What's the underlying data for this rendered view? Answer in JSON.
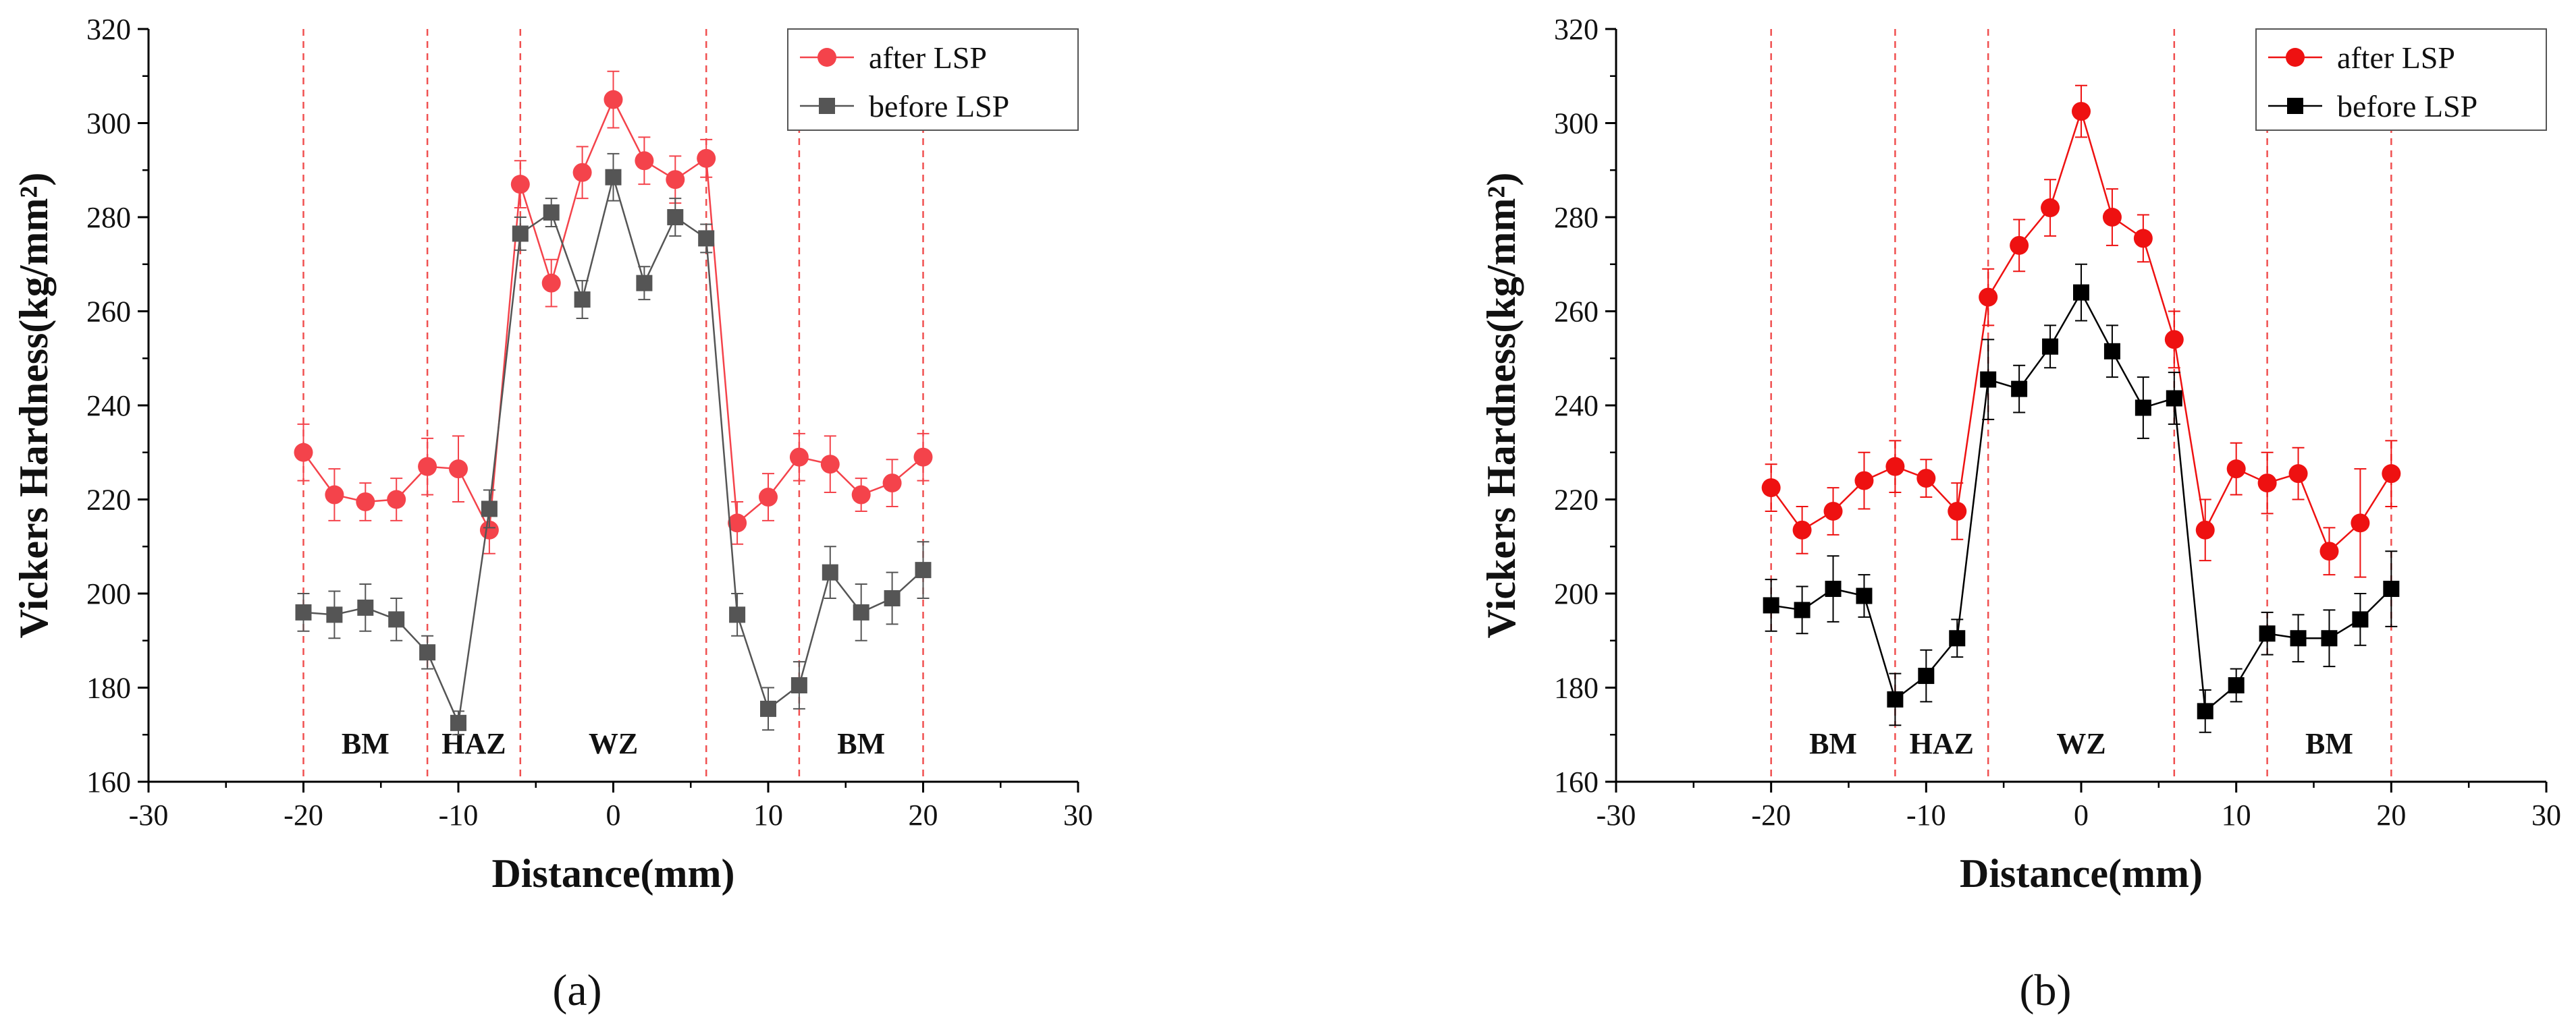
{
  "chart_data": [
    {
      "type": "line",
      "panel_label": "(a)",
      "xlabel": "Distance(mm)",
      "ylabel": "Vickers Hardness(kg/mm²)",
      "xlim": [
        -30,
        30
      ],
      "ylim": [
        160,
        320
      ],
      "xticks": [
        -30,
        -20,
        -10,
        0,
        10,
        20,
        30
      ],
      "yticks": [
        160,
        180,
        200,
        220,
        240,
        260,
        280,
        300,
        320
      ],
      "x": [
        -20,
        -18,
        -16,
        -14,
        -12,
        -10,
        -8,
        -6,
        -4,
        -2,
        0,
        2,
        4,
        6,
        8,
        10,
        12,
        14,
        16,
        18,
        20
      ],
      "zone_lines": [
        -20,
        -12,
        -6,
        6,
        12,
        20
      ],
      "zone_labels": [
        {
          "text": "BM",
          "x": -16
        },
        {
          "text": "HAZ",
          "x": -9
        },
        {
          "text": "WZ",
          "x": 0
        },
        {
          "text": "BM",
          "x": 16
        }
      ],
      "legend": {
        "position": "top-right"
      },
      "series": [
        {
          "name": "after LSP",
          "color": "#f4434b",
          "marker": "circle",
          "values": [
            230,
            221,
            219.5,
            220,
            227,
            226.5,
            213.5,
            287,
            266,
            289.5,
            305,
            292,
            288,
            292.5,
            215,
            220.5,
            229,
            227.5,
            221,
            223.5,
            229
          ],
          "errors": [
            6,
            5.5,
            4,
            4.5,
            6,
            7,
            5,
            5,
            5,
            5.5,
            6,
            5,
            5,
            4,
            4.5,
            5,
            5,
            6,
            3.5,
            5,
            5
          ]
        },
        {
          "name": "before LSP",
          "color": "#555555",
          "marker": "square",
          "values": [
            196,
            195.5,
            197,
            194.5,
            187.5,
            172.5,
            218,
            276.5,
            281,
            262.5,
            288.5,
            266,
            280,
            275.5,
            195.5,
            175.5,
            180.5,
            204.5,
            196,
            199,
            205
          ],
          "errors": [
            4,
            5,
            5,
            4.5,
            3.5,
            2.5,
            4,
            3.5,
            3,
            4,
            5,
            3.5,
            4,
            3,
            4.5,
            4.5,
            5,
            5.5,
            6,
            5.5,
            6
          ]
        }
      ]
    },
    {
      "type": "line",
      "panel_label": "(b)",
      "xlabel": "Distance(mm)",
      "ylabel": "Vickers Hardness(kg/mm²)",
      "xlim": [
        -30,
        30
      ],
      "ylim": [
        160,
        320
      ],
      "xticks": [
        -30,
        -20,
        -10,
        0,
        10,
        20,
        30
      ],
      "yticks": [
        160,
        180,
        200,
        220,
        240,
        260,
        280,
        300,
        320
      ],
      "x": [
        -20,
        -18,
        -16,
        -14,
        -12,
        -10,
        -8,
        -6,
        -4,
        -2,
        0,
        2,
        4,
        6,
        8,
        10,
        12,
        14,
        16,
        18,
        20
      ],
      "zone_lines": [
        -20,
        -12,
        -6,
        6,
        12,
        20
      ],
      "zone_labels": [
        {
          "text": "BM",
          "x": -16
        },
        {
          "text": "HAZ",
          "x": -9
        },
        {
          "text": "WZ",
          "x": 0
        },
        {
          "text": "BM",
          "x": 16
        }
      ],
      "legend": {
        "position": "top-right"
      },
      "series": [
        {
          "name": "after LSP",
          "color": "#ee1111",
          "marker": "circle",
          "values": [
            222.5,
            213.5,
            217.5,
            224,
            227,
            224.5,
            217.5,
            263,
            274,
            282,
            302.5,
            280,
            275.5,
            254,
            213.5,
            226.5,
            223.5,
            225.5,
            209,
            215,
            225.5
          ],
          "errors": [
            5,
            5,
            5,
            6,
            5.5,
            4,
            6,
            6,
            5.5,
            6,
            5.5,
            6,
            5,
            6,
            6.5,
            5.5,
            6.5,
            5.5,
            5,
            11.5,
            7
          ]
        },
        {
          "name": "before LSP",
          "color": "#000000",
          "marker": "square",
          "values": [
            197.5,
            196.5,
            201,
            199.5,
            177.5,
            182.5,
            190.5,
            245.5,
            243.5,
            252.5,
            264,
            251.5,
            239.5,
            241.5,
            175,
            180.5,
            191.5,
            190.5,
            190.5,
            194.5,
            201
          ],
          "errors": [
            5.5,
            5,
            7,
            4.5,
            5.5,
            5.5,
            4,
            8.5,
            5,
            4.5,
            6,
            5.5,
            6.5,
            5.5,
            4.5,
            3.5,
            4.5,
            5,
            6,
            5.5,
            8
          ]
        }
      ]
    }
  ]
}
